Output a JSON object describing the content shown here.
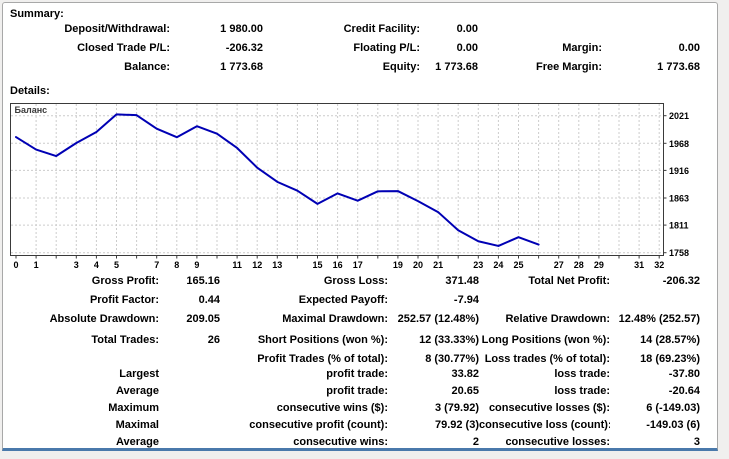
{
  "summary": {
    "heading": "Summary:",
    "rows": [
      [
        "Deposit/Withdrawal:",
        "1 980.00",
        "Credit Facility:",
        "0.00",
        "",
        ""
      ],
      [
        "Closed Trade P/L:",
        "-206.32",
        "Floating P/L:",
        "0.00",
        "Margin:",
        "0.00"
      ],
      [
        "Balance:",
        "1 773.68",
        "Equity:",
        "1 773.68",
        "Free Margin:",
        "1 773.68"
      ]
    ]
  },
  "details_heading": "Details:",
  "chart_data": {
    "type": "line",
    "title": "Баланс",
    "legend_label": "Баланс",
    "series": [
      {
        "name": "Баланс",
        "values": [
          1980.0,
          1956.0,
          1943.6,
          1968.6,
          1989.7,
          2023.52,
          2022.0,
          1996.0,
          1979.7,
          2000.8,
          1986.5,
          1959.0,
          1921.2,
          1894.0,
          1877.0,
          1851.77,
          1871.8,
          1857.8,
          1875.8,
          1876.3,
          1857.0,
          1836.0,
          1801.0,
          1780.0,
          1770.95,
          1787.85,
          1773.68
        ]
      }
    ],
    "x": [
      0,
      1,
      2,
      3,
      4,
      5,
      6,
      7,
      8,
      9,
      10,
      11,
      12,
      13,
      14,
      15,
      16,
      17,
      18,
      19,
      20,
      21,
      22,
      23,
      24,
      25,
      26
    ],
    "xlim": [
      0,
      32
    ],
    "x_tick_labels": [
      0,
      1,
      3,
      4,
      5,
      7,
      8,
      9,
      11,
      12,
      13,
      15,
      16,
      17,
      19,
      20,
      21,
      23,
      24,
      25,
      27,
      28,
      29,
      31,
      32
    ],
    "y_ticks": [
      2021,
      1968,
      1916,
      1863,
      1811,
      1758
    ],
    "ylim": [
      1753,
      2046
    ],
    "grid": true,
    "legend_position": "top-left",
    "line_color": "#0000b4",
    "grid_color": "#cccccc",
    "plot_border_color": "#3a3a3a"
  },
  "stats": {
    "blocks": [
      {
        "rows": [
          [
            "Gross Profit:",
            "165.16",
            "Gross Loss:",
            "371.48",
            "Total Net Profit:",
            "-206.32"
          ],
          [
            "Profit Factor:",
            "0.44",
            "Expected Payoff:",
            "-7.94",
            "",
            ""
          ],
          [
            "Absolute Drawdown:",
            "209.05",
            "Maximal Drawdown:",
            "252.57 (12.48%)",
            "Relative Drawdown:",
            "12.48% (252.57)"
          ]
        ]
      },
      {
        "rows": [
          [
            "Total Trades:",
            "26",
            "Short Positions (won %):",
            "12 (33.33%)",
            "Long Positions (won %):",
            "14 (28.57%)"
          ],
          [
            "",
            "",
            "Profit Trades (% of total):",
            "8 (30.77%)",
            "Loss trades (% of total):",
            "18 (69.23%)"
          ]
        ]
      },
      {
        "rows": [
          [
            "Largest",
            "",
            "profit trade:",
            "33.82",
            "loss trade:",
            "-37.80"
          ],
          [
            "Average",
            "",
            "profit trade:",
            "20.65",
            "loss trade:",
            "-20.64"
          ],
          [
            "Maximum",
            "",
            "consecutive wins ($):",
            "3 (79.92)",
            "consecutive losses ($):",
            "6 (-149.03)"
          ],
          [
            "Maximal",
            "",
            "consecutive profit (count):",
            "79.92 (3)",
            "consecutive loss (count):",
            "-149.03 (6)"
          ],
          [
            "Average",
            "",
            "consecutive wins:",
            "2",
            "consecutive losses:",
            "3"
          ]
        ]
      }
    ]
  },
  "colors": {
    "balance_line": "#0000b4",
    "panel_border": "#a8a8a8",
    "bottom_bar": "#4a79ab",
    "background": "#f0efee"
  }
}
